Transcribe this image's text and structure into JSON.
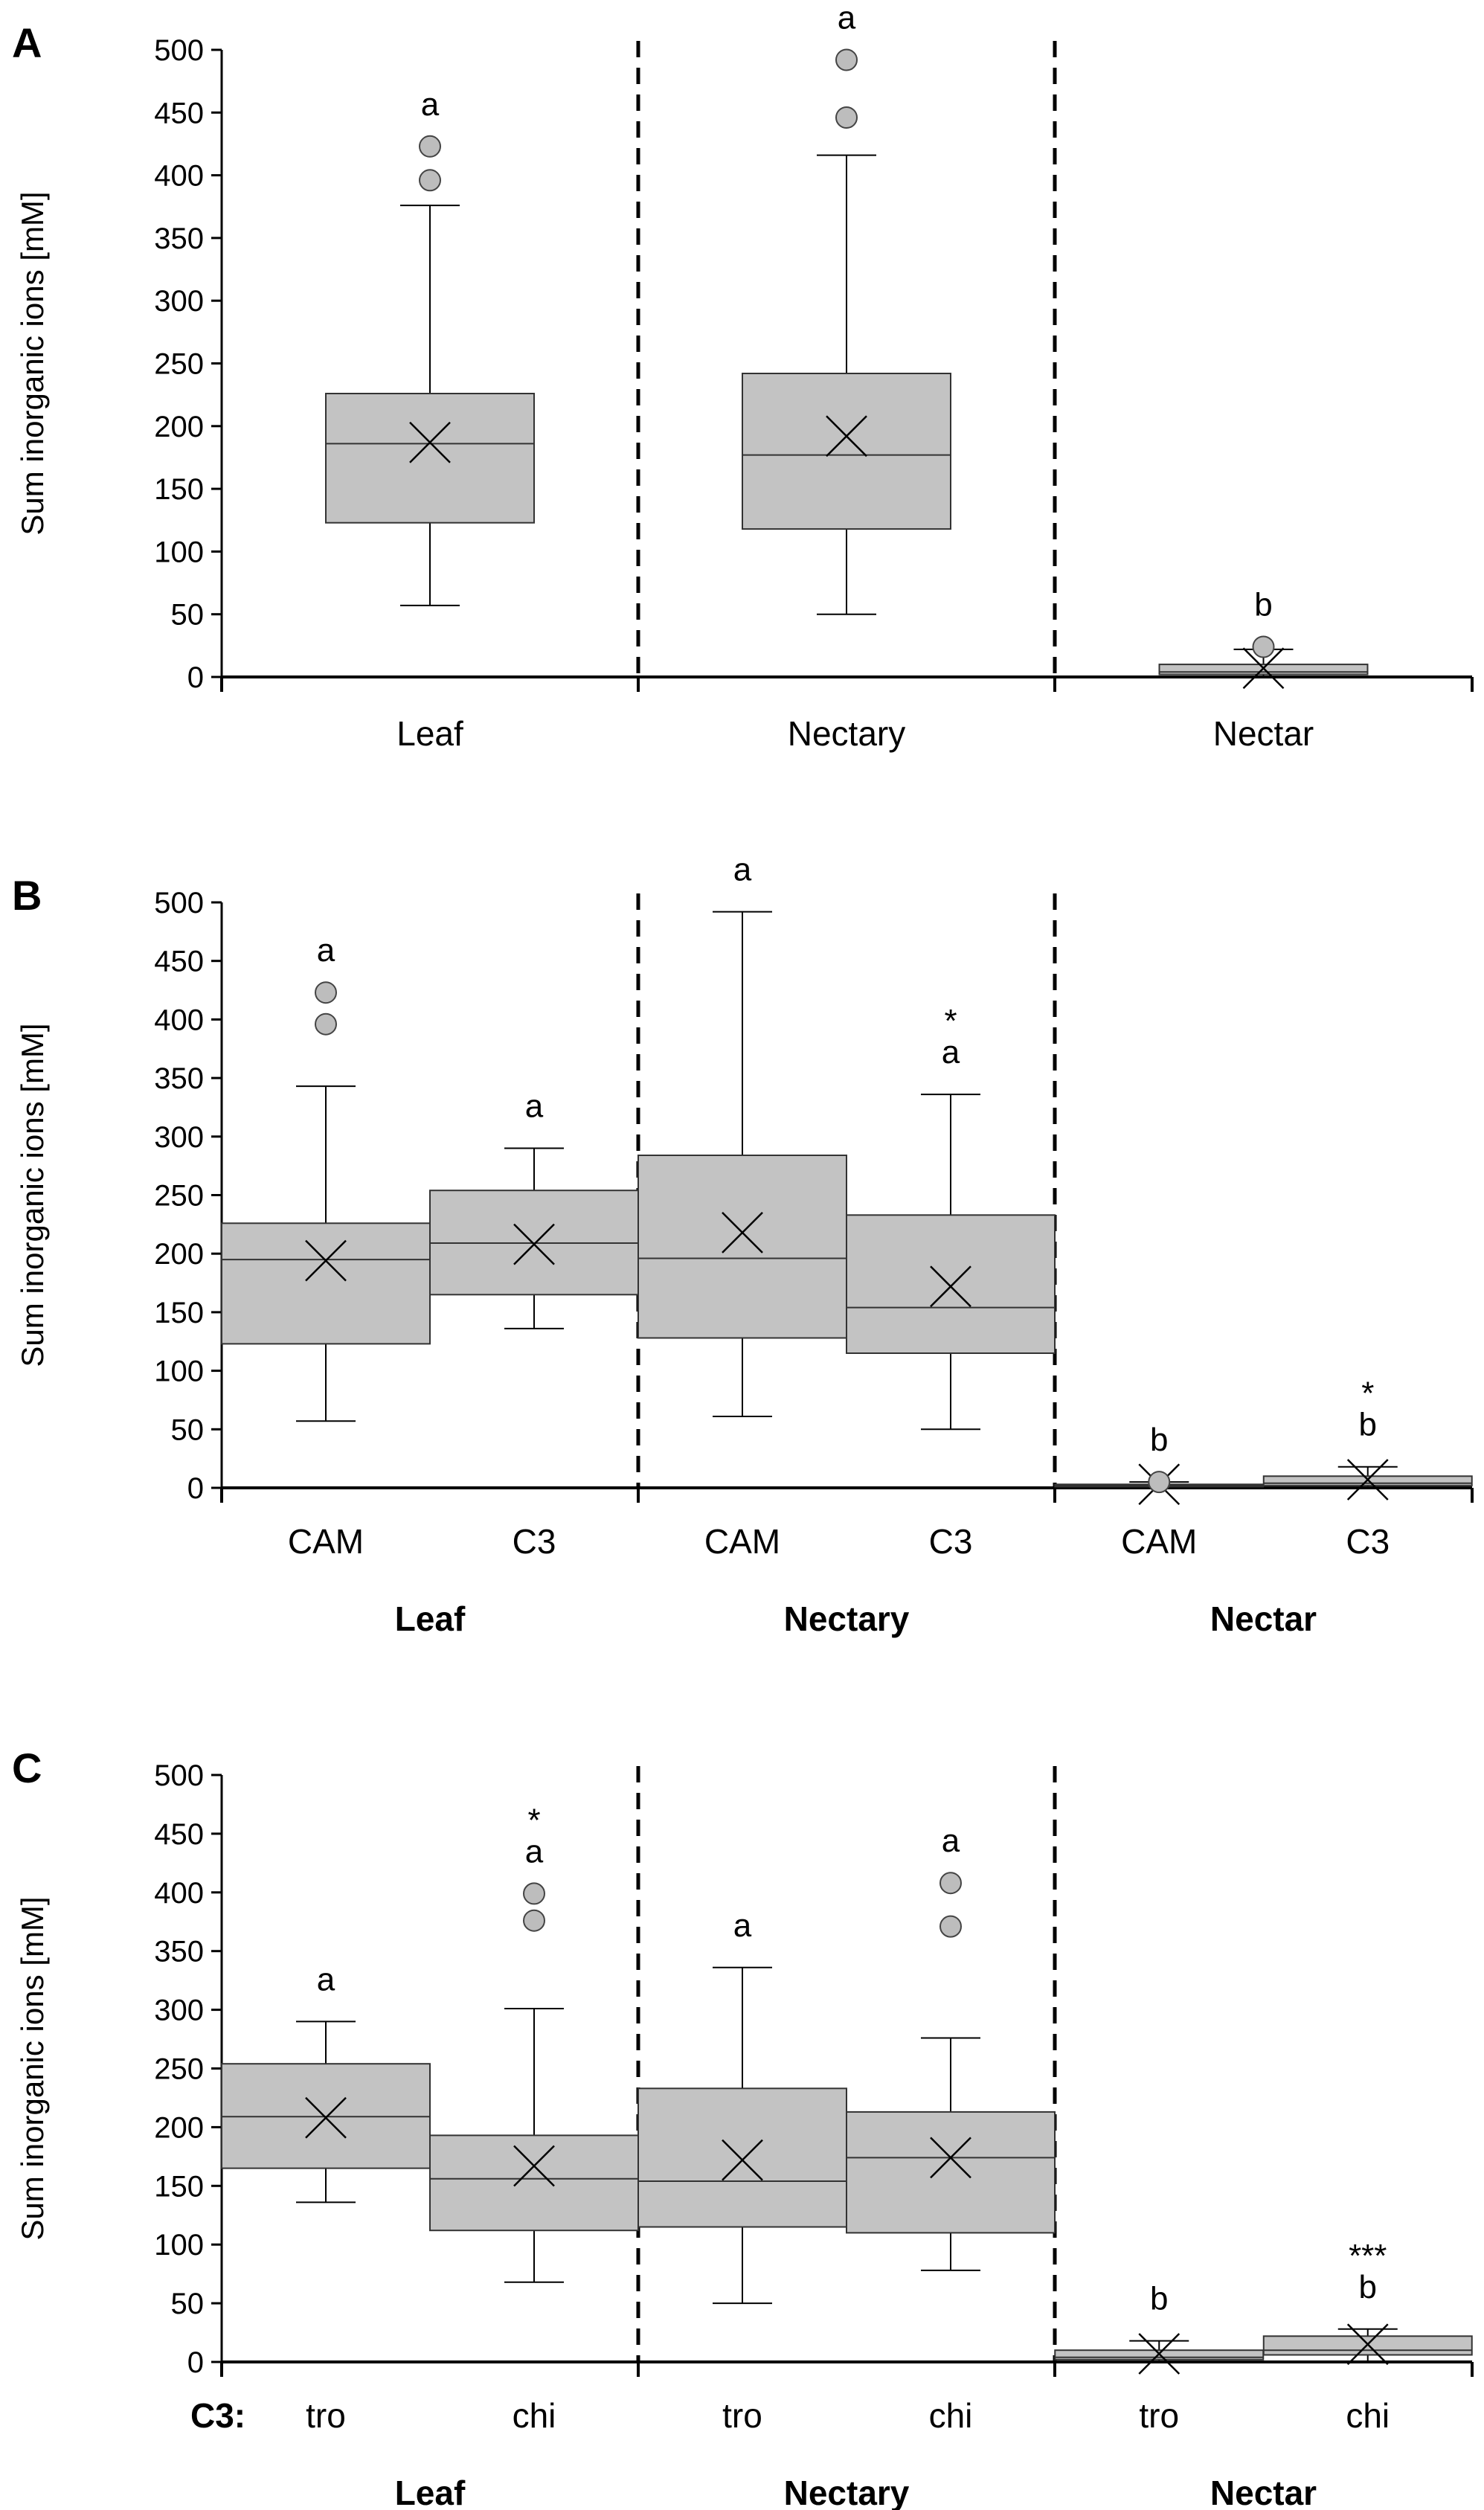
{
  "chart_data": [
    {
      "type": "box",
      "panel": "A",
      "ylabel": "Sum inorganic ions [mM]",
      "ylim": [
        0,
        500
      ],
      "yticks": [
        0,
        50,
        100,
        150,
        200,
        250,
        300,
        350,
        400,
        450,
        500
      ],
      "groups": [
        "Leaf",
        "Nectary",
        "Nectar"
      ],
      "boxes": [
        {
          "group": 0,
          "label": "Leaf",
          "min": 57,
          "q1": 123,
          "median": 186,
          "q3": 226,
          "max": 376,
          "mean": 187,
          "outliers": [
            396,
            423
          ],
          "sig": "a",
          "star": ""
        },
        {
          "group": 1,
          "label": "Nectary",
          "min": 50,
          "q1": 118,
          "median": 177,
          "q3": 242,
          "max": 416,
          "mean": 192,
          "outliers": [
            446,
            492
          ],
          "sig": "a",
          "star": ""
        },
        {
          "group": 2,
          "label": "Nectar",
          "min": 0,
          "q1": 2,
          "median": 4,
          "q3": 10,
          "max": 22,
          "mean": 7,
          "outliers": [
            24
          ],
          "sig": "b",
          "star": ""
        }
      ]
    },
    {
      "type": "box",
      "panel": "B",
      "ylabel": "Sum inorganic ions [mM]",
      "ylim": [
        0,
        500
      ],
      "yticks": [
        0,
        50,
        100,
        150,
        200,
        250,
        300,
        350,
        400,
        450,
        500
      ],
      "row_label": "",
      "groups": [
        "Leaf",
        "Nectary",
        "Nectar"
      ],
      "boxes": [
        {
          "group": 0,
          "label": "CAM",
          "min": 57,
          "q1": 123,
          "median": 195,
          "q3": 226,
          "max": 343,
          "mean": 194,
          "outliers": [
            396,
            423
          ],
          "sig": "a",
          "star": ""
        },
        {
          "group": 0,
          "label": "C3",
          "min": 136,
          "q1": 165,
          "median": 209,
          "q3": 254,
          "max": 290,
          "mean": 208,
          "outliers": [],
          "sig": "a",
          "star": ""
        },
        {
          "group": 1,
          "label": "CAM",
          "min": 61,
          "q1": 128,
          "median": 196,
          "q3": 284,
          "max": 492,
          "mean": 218,
          "outliers": [],
          "sig": "a",
          "star": ""
        },
        {
          "group": 1,
          "label": "C3",
          "min": 50,
          "q1": 115,
          "median": 154,
          "q3": 233,
          "max": 336,
          "mean": 172,
          "outliers": [],
          "sig": "a",
          "star": "*"
        },
        {
          "group": 2,
          "label": "CAM",
          "min": 0,
          "q1": 1,
          "median": 2,
          "q3": 3,
          "max": 5,
          "mean": 3,
          "outliers": [
            5
          ],
          "sig": "b",
          "star": ""
        },
        {
          "group": 2,
          "label": "C3",
          "min": 0,
          "q1": 2,
          "median": 4,
          "q3": 10,
          "max": 18,
          "mean": 7,
          "outliers": [],
          "sig": "b",
          "star": "*"
        }
      ]
    },
    {
      "type": "box",
      "panel": "C",
      "ylabel": "Sum inorganic ions [mM]",
      "ylim": [
        0,
        500
      ],
      "yticks": [
        0,
        50,
        100,
        150,
        200,
        250,
        300,
        350,
        400,
        450,
        500
      ],
      "row_label": "C3:",
      "groups": [
        "Leaf",
        "Nectary",
        "Nectar"
      ],
      "boxes": [
        {
          "group": 0,
          "label": "tro",
          "min": 136,
          "q1": 165,
          "median": 209,
          "q3": 254,
          "max": 290,
          "mean": 208,
          "outliers": [],
          "sig": "a",
          "star": ""
        },
        {
          "group": 0,
          "label": "chi",
          "min": 68,
          "q1": 112,
          "median": 156,
          "q3": 193,
          "max": 301,
          "mean": 167,
          "outliers": [
            376,
            399
          ],
          "sig": "a",
          "star": "*"
        },
        {
          "group": 1,
          "label": "tro",
          "min": 50,
          "q1": 115,
          "median": 154,
          "q3": 233,
          "max": 336,
          "mean": 172,
          "outliers": [],
          "sig": "a",
          "star": ""
        },
        {
          "group": 1,
          "label": "chi",
          "min": 78,
          "q1": 110,
          "median": 174,
          "q3": 213,
          "max": 276,
          "mean": 174,
          "outliers": [
            371,
            408
          ],
          "sig": "a",
          "star": ""
        },
        {
          "group": 2,
          "label": "tro",
          "min": 0,
          "q1": 2,
          "median": 4,
          "q3": 10,
          "max": 18,
          "mean": 7,
          "outliers": [],
          "sig": "b",
          "star": ""
        },
        {
          "group": 2,
          "label": "chi",
          "min": 0,
          "q1": 6,
          "median": 10,
          "q3": 22,
          "max": 28,
          "mean": 15,
          "outliers": [],
          "sig": "b",
          "star": "***"
        }
      ]
    }
  ]
}
